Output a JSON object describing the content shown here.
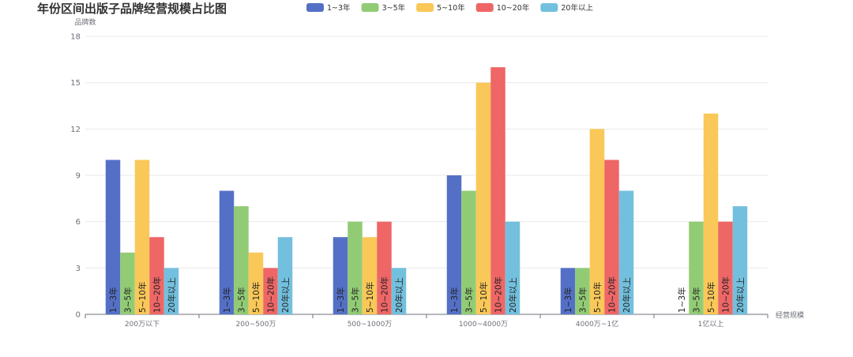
{
  "chart_data": {
    "type": "bar",
    "title": "年份区间出版子品牌经营规模占比图",
    "xlabel": "经营规模",
    "ylabel": "品牌数",
    "ylim": [
      0,
      18
    ],
    "yticks": [
      0,
      3,
      6,
      9,
      12,
      15,
      18
    ],
    "categories": [
      "200万以下",
      "200~500万",
      "500~1000万",
      "1000~4000万",
      "4000万~1亿",
      "1亿以上"
    ],
    "series": [
      {
        "name": "1~3年",
        "color": "#5470c6",
        "values": [
          10,
          8,
          5,
          9,
          3,
          0
        ]
      },
      {
        "name": "3~5年",
        "color": "#91cc75",
        "values": [
          4,
          7,
          6,
          8,
          3,
          6
        ]
      },
      {
        "name": "5~10年",
        "color": "#fac858",
        "values": [
          10,
          4,
          5,
          15,
          12,
          13
        ]
      },
      {
        "name": "10~20年",
        "color": "#ee6666",
        "values": [
          5,
          3,
          6,
          16,
          10,
          6
        ]
      },
      {
        "name": "20年以上",
        "color": "#73c0de",
        "values": [
          3,
          5,
          3,
          6,
          8,
          7
        ]
      }
    ],
    "legend_position": "top-center",
    "grid": true
  }
}
